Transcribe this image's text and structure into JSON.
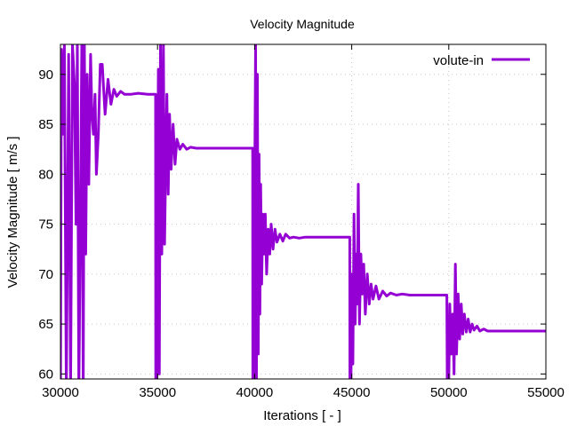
{
  "chart_data": {
    "type": "line",
    "title": "Velocity Magnitude",
    "xlabel": "Iterations [ - ]",
    "ylabel": "Velocity Magnitude [ m/s ]",
    "xlim": [
      30000,
      55000
    ],
    "ylim": [
      59.5,
      93
    ],
    "x_ticks": [
      30000,
      35000,
      40000,
      45000,
      50000,
      55000
    ],
    "y_ticks": [
      60,
      65,
      70,
      75,
      80,
      85,
      90
    ],
    "grid": true,
    "legend_position": "top-right",
    "series": [
      {
        "name": "volute-in",
        "color": "#9400d3",
        "x": [
          30000,
          30050,
          30100,
          30200,
          30300,
          30420,
          30520,
          30620,
          30720,
          30800,
          30870,
          30950,
          31030,
          31100,
          31170,
          31230,
          31300,
          31380,
          31460,
          31550,
          31620,
          31700,
          31780,
          31850,
          31950,
          32050,
          32150,
          32300,
          32450,
          32600,
          32750,
          32900,
          33100,
          33300,
          33600,
          34000,
          34500,
          34900,
          34910,
          34930,
          34960,
          34990,
          35040,
          35090,
          35150,
          35220,
          35300,
          35360,
          35420,
          35480,
          35550,
          35620,
          35700,
          35800,
          35900,
          36000,
          36150,
          36300,
          36500,
          36700,
          37000,
          37500,
          38000,
          38500,
          39000,
          39900,
          39910,
          39930,
          39960,
          40000,
          40050,
          40090,
          40140,
          40190,
          40230,
          40270,
          40310,
          40360,
          40420,
          40480,
          40550,
          40620,
          40700,
          40780,
          40850,
          40950,
          41050,
          41150,
          41300,
          41450,
          41600,
          41800,
          42000,
          42300,
          42600,
          43000,
          43500,
          44000,
          44500,
          44900,
          44910,
          44930,
          44960,
          45000,
          45060,
          45120,
          45180,
          45230,
          45280,
          45340,
          45400,
          45470,
          45540,
          45620,
          45700,
          45800,
          45900,
          46000,
          46100,
          46250,
          46400,
          46600,
          46800,
          47000,
          47300,
          47600,
          48000,
          48500,
          49000,
          49900,
          49920,
          49950,
          49990,
          50050,
          50120,
          50200,
          50270,
          50340,
          50400,
          50480,
          50560,
          50640,
          50720,
          50800,
          50900,
          51000,
          51100,
          51200,
          51300,
          51450,
          51600,
          51800,
          52000,
          52300,
          52600,
          53000,
          53500,
          54000,
          54500,
          55000
        ],
        "values": [
          58,
          92.5,
          84,
          93,
          58,
          92,
          58,
          93,
          89,
          75,
          93,
          58,
          76,
          93,
          58,
          93,
          72,
          90,
          79,
          92,
          86,
          84,
          88,
          80,
          84,
          91,
          91,
          86,
          89.5,
          87,
          88.5,
          87.8,
          88.3,
          88,
          88,
          88.1,
          88,
          88,
          58,
          77,
          58,
          70,
          90.5,
          60,
          93,
          72,
          93,
          73,
          81,
          88,
          78,
          86,
          80.5,
          85,
          81,
          83.5,
          82.5,
          83,
          82.5,
          82.7,
          82.6,
          82.6,
          82.6,
          82.6,
          82.6,
          82.6,
          58,
          67,
          58,
          78,
          93,
          58,
          90,
          62,
          82,
          66,
          79,
          69,
          76,
          72,
          76,
          70,
          74.5,
          72,
          75,
          72.5,
          74.5,
          73.2,
          74,
          73.3,
          74,
          73.6,
          73.7,
          73.6,
          73.7,
          73.7,
          73.7,
          73.7,
          73.7,
          73.7,
          58,
          66,
          58,
          70,
          61,
          76,
          65,
          72,
          67,
          79,
          65,
          72,
          68,
          71,
          66,
          70,
          67,
          69,
          67.5,
          68.8,
          67.5,
          68.3,
          67.8,
          68.1,
          67.9,
          68,
          67.9,
          67.9,
          67.9,
          67.9,
          58,
          63,
          58,
          67,
          62,
          66,
          60,
          71,
          62,
          68,
          63.5,
          67,
          64,
          66,
          64.2,
          65.5,
          64.2,
          65,
          64.4,
          64.8,
          64.3,
          64.5,
          64.3,
          64.3,
          64.3,
          64.3,
          64.3,
          64.3,
          64.3,
          64.3
        ]
      }
    ]
  }
}
